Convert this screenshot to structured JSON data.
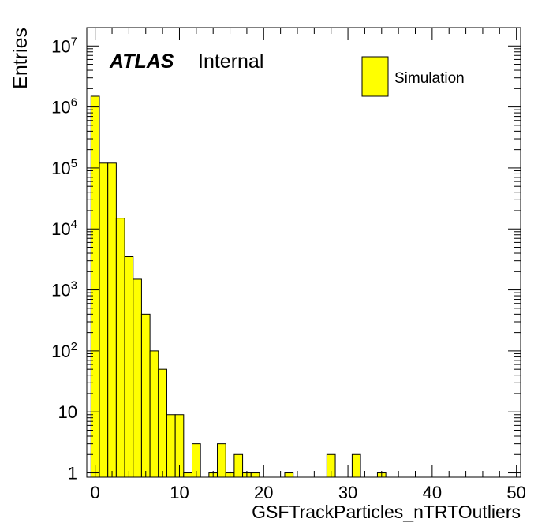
{
  "chart_data": {
    "type": "bar",
    "experiment_label": "ATLAS",
    "status_label": "Internal",
    "xlabel": "GSFTrackParticles_nTRTOutliers",
    "ylabel": "Entries",
    "xlim": [
      -1,
      50.5
    ],
    "ylim": [
      0.85,
      20000000
    ],
    "y_scale": "log",
    "bin_width": 1,
    "fill_color": "#ffff00",
    "line_color": "#000000",
    "legend": {
      "label": "Simulation",
      "position": "top-right"
    },
    "x_ticks": [
      0,
      10,
      20,
      30,
      40,
      50
    ],
    "y_ticks": [
      {
        "value": 1,
        "base": "1",
        "exp": ""
      },
      {
        "value": 10,
        "base": "10",
        "exp": ""
      },
      {
        "value": 100,
        "base": "10",
        "exp": "2"
      },
      {
        "value": 1000,
        "base": "10",
        "exp": "3"
      },
      {
        "value": 10000,
        "base": "10",
        "exp": "4"
      },
      {
        "value": 100000,
        "base": "10",
        "exp": "5"
      },
      {
        "value": 1000000,
        "base": "10",
        "exp": "6"
      },
      {
        "value": 10000000,
        "base": "10",
        "exp": "7"
      }
    ],
    "bins": [
      {
        "x": 0,
        "y": 1500000
      },
      {
        "x": 1,
        "y": 120000
      },
      {
        "x": 2,
        "y": 120000
      },
      {
        "x": 3,
        "y": 15000
      },
      {
        "x": 4,
        "y": 3500
      },
      {
        "x": 5,
        "y": 1500
      },
      {
        "x": 6,
        "y": 400
      },
      {
        "x": 7,
        "y": 100
      },
      {
        "x": 8,
        "y": 50
      },
      {
        "x": 9,
        "y": 9
      },
      {
        "x": 10,
        "y": 9
      },
      {
        "x": 11,
        "y": 1
      },
      {
        "x": 12,
        "y": 3
      },
      {
        "x": 14,
        "y": 1
      },
      {
        "x": 15,
        "y": 3
      },
      {
        "x": 16,
        "y": 1
      },
      {
        "x": 17,
        "y": 2
      },
      {
        "x": 18,
        "y": 1
      },
      {
        "x": 19,
        "y": 1
      },
      {
        "x": 23,
        "y": 1
      },
      {
        "x": 28,
        "y": 2
      },
      {
        "x": 31,
        "y": 2
      },
      {
        "x": 34,
        "y": 1
      }
    ]
  }
}
